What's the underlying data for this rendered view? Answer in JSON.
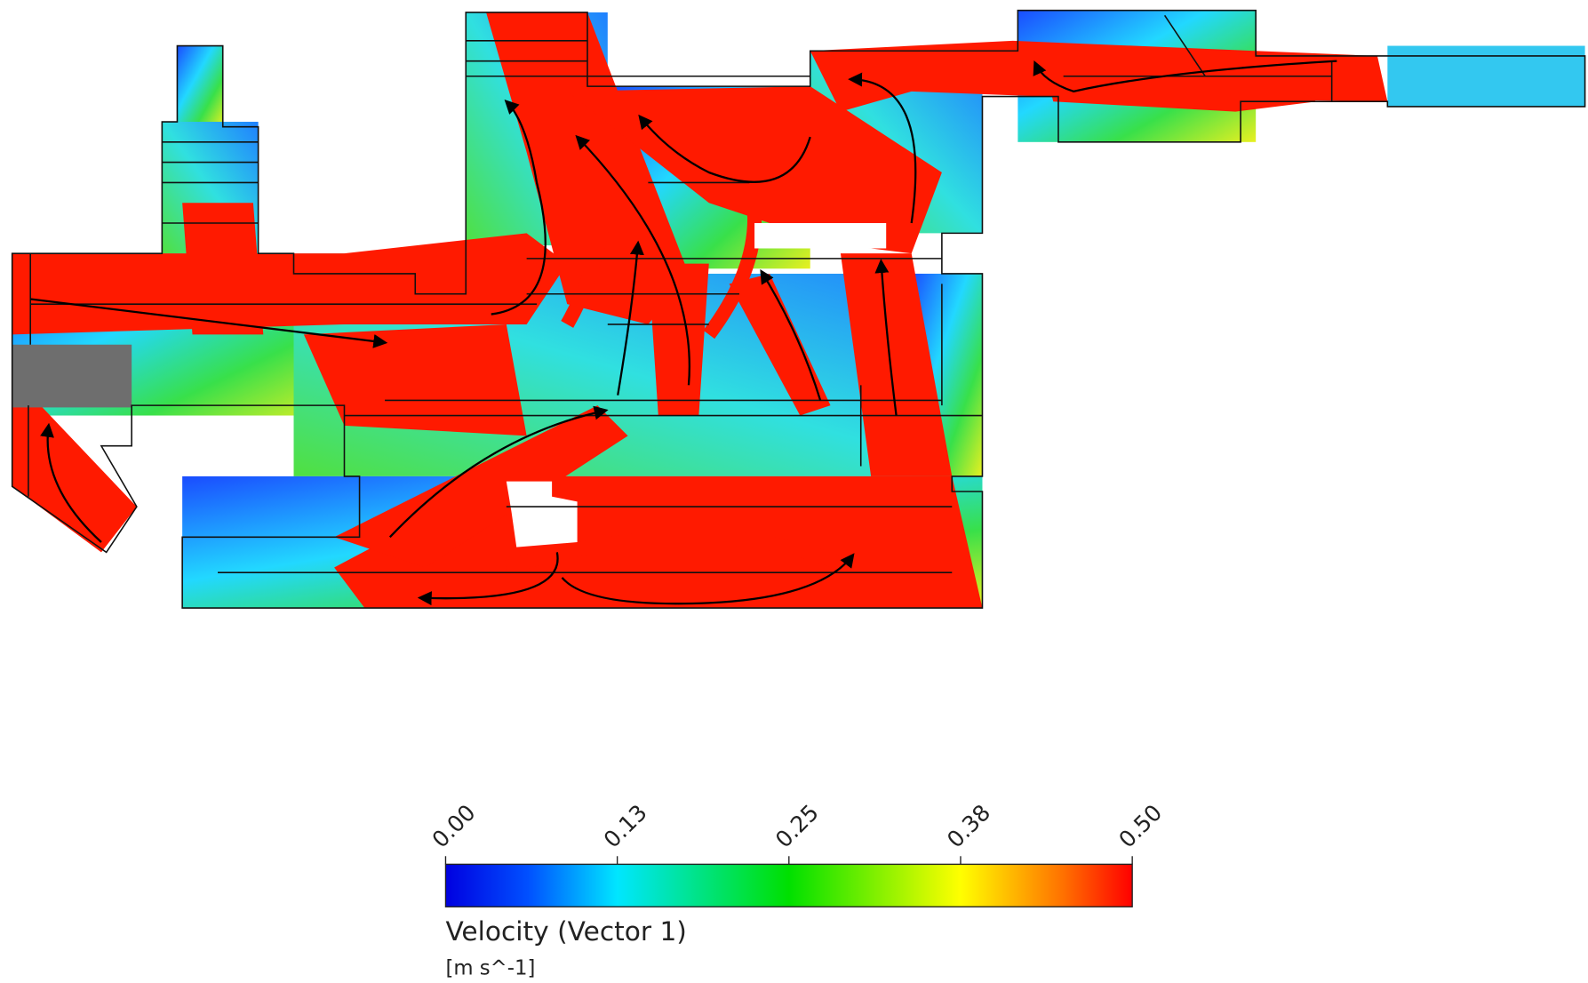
{
  "colorbar": {
    "title": "Velocity (Vector 1)",
    "unit": "[m s^-1]",
    "range": [
      0,
      0.5
    ],
    "ticks": [
      {
        "value": 0,
        "label": "0.00"
      },
      {
        "value": 0.125,
        "label": "0.13"
      },
      {
        "value": 0.25,
        "label": "0.25"
      },
      {
        "value": 0.375,
        "label": "0.38"
      },
      {
        "value": 0.5,
        "label": "0.50"
      }
    ]
  }
}
